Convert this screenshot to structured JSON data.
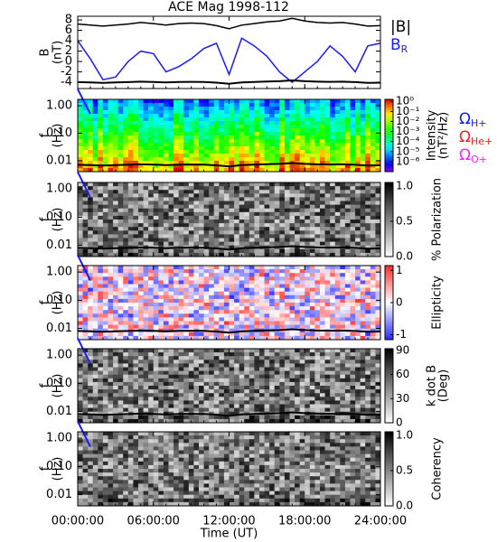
{
  "chart_data": [
    {
      "type": "line",
      "title": "ACE Mag 1998-112",
      "ylabel": [
        "B",
        "(nT)"
      ],
      "x": [
        0,
        1,
        2,
        3,
        4,
        5,
        6,
        7,
        8,
        9,
        10,
        11,
        12,
        13,
        14,
        15,
        16,
        17,
        18,
        19,
        20,
        21,
        22,
        23,
        24
      ],
      "xlim": [
        0,
        24
      ],
      "ylim": [
        -5.2,
        8.7
      ],
      "yticks": [
        -4,
        -2,
        0,
        2,
        4,
        6,
        8
      ],
      "series": [
        {
          "name": "|B|",
          "color": "#000000",
          "values": [
            7.2,
            7.0,
            6.8,
            7.0,
            7.2,
            7.5,
            7.3,
            7.0,
            7.3,
            7.4,
            7.3,
            6.9,
            6.3,
            7.0,
            7.3,
            7.6,
            7.8,
            8.3,
            7.8,
            7.5,
            7.4,
            7.5,
            7.2,
            6.8,
            6.9
          ]
        },
        {
          "name": "B",
          "name_sub": "R",
          "color": "#1a1aff",
          "values": [
            4,
            0.5,
            -3.5,
            -3,
            0,
            2,
            1.5,
            -2,
            -1,
            0.5,
            2.5,
            3.5,
            -2.5,
            4.5,
            3,
            1,
            -2,
            -4,
            -2,
            0,
            3,
            1,
            -2,
            3,
            3.5
          ]
        }
      ]
    },
    {
      "type": "spectrogram",
      "ylabel": [
        "f",
        "(Hz)"
      ],
      "log_y": true,
      "xlim": [
        0,
        24
      ],
      "ylim": [
        0.004,
        1.7
      ],
      "yticks": [
        {
          "value": 1,
          "label": "1.00"
        },
        {
          "value": 0.1,
          "label": "0.10"
        },
        {
          "value": 0.01,
          "label": "0.01"
        }
      ],
      "colorbar": {
        "label": [
          "Intensity",
          "(nT²/Hz)"
        ],
        "colormap": "rainbow",
        "clim": [
          -7,
          0.2
        ],
        "ticks": [
          {
            "value": 0,
            "label": "10⁰"
          },
          {
            "value": -1,
            "label": "10⁻¹"
          },
          {
            "value": -2,
            "label": "10⁻²"
          },
          {
            "value": -3,
            "label": "10⁻³"
          },
          {
            "value": -4,
            "label": "10⁻⁴"
          },
          {
            "value": -5,
            "label": "10⁻⁵"
          },
          {
            "value": -6,
            "label": "10⁻⁶"
          }
        ]
      },
      "x": [
        0,
        1,
        2,
        3,
        4,
        5,
        6,
        7,
        8,
        9,
        10,
        11,
        12,
        13,
        14,
        15,
        16,
        17,
        18,
        19,
        20,
        21,
        22,
        23,
        24
      ],
      "series": [
        {
          "name": "Ω",
          "name_sub": "H+",
          "color": "#1a1aff",
          "values": [
            0.095,
            0.09,
            0.085,
            0.085,
            0.09,
            0.09,
            0.092,
            0.088,
            0.085,
            0.09,
            0.095,
            0.1,
            0.1,
            0.095,
            0.1,
            0.1,
            0.1,
            0.095,
            0.09,
            0.1,
            0.105,
            0.105,
            0.1,
            0.1,
            0.105
          ]
        },
        {
          "name": "Ω",
          "name_sub": "He+",
          "color": "#ff1a1a",
          "values": [
            0.024,
            0.023,
            0.022,
            0.022,
            0.023,
            0.023,
            0.024,
            0.022,
            0.022,
            0.023,
            0.024,
            0.026,
            0.025,
            0.024,
            0.026,
            0.026,
            0.025,
            0.024,
            0.022,
            0.025,
            0.027,
            0.026,
            0.025,
            0.025,
            0.026
          ]
        },
        {
          "name": "Ω",
          "name_sub": "O+",
          "color": "#ff1aff",
          "values": [
            0.006,
            0.0058,
            0.0055,
            0.0055,
            0.0057,
            0.0058,
            0.006,
            0.0056,
            0.0055,
            0.0057,
            0.006,
            0.0065,
            0.0063,
            0.006,
            0.0065,
            0.0065,
            0.0063,
            0.006,
            0.0056,
            0.0063,
            0.0067,
            0.0066,
            0.0063,
            0.0063,
            0.0066
          ]
        }
      ]
    },
    {
      "type": "spectrogram",
      "ylabel": [
        "f",
        "(Hz)"
      ],
      "log_y": true,
      "xlim": [
        0,
        24
      ],
      "ylim": [
        0.004,
        1.7
      ],
      "yticks": [
        {
          "value": 1,
          "label": "1.00"
        },
        {
          "value": 0.1,
          "label": "0.10"
        },
        {
          "value": 0.01,
          "label": "0.01"
        }
      ],
      "colorbar": {
        "label": [
          "% Polarization"
        ],
        "colormap": "gray",
        "clim": [
          0,
          1.05
        ],
        "ticks": [
          {
            "value": 1,
            "label": "1.0"
          },
          0.5,
          {
            "value": 0,
            "label": "0.0"
          }
        ]
      }
    },
    {
      "type": "spectrogram",
      "ylabel": [
        "f",
        "(Hz)"
      ],
      "log_y": true,
      "xlim": [
        0,
        24
      ],
      "ylim": [
        0.004,
        1.7
      ],
      "yticks": [
        {
          "value": 1,
          "label": "1.00"
        },
        {
          "value": 0.1,
          "label": "0.10"
        },
        {
          "value": 0.01,
          "label": "0.01"
        }
      ],
      "colorbar": {
        "label": [
          "Ellipticity"
        ],
        "colormap": "bwr",
        "clim": [
          -1.15,
          1.15
        ],
        "ticks": [
          1,
          0,
          -1
        ]
      }
    },
    {
      "type": "spectrogram",
      "ylabel": [
        "f",
        "(Hz)"
      ],
      "log_y": true,
      "xlim": [
        0,
        24
      ],
      "ylim": [
        0.004,
        1.7
      ],
      "yticks": [
        {
          "value": 1,
          "label": "1.00"
        },
        {
          "value": 0.1,
          "label": "0.10"
        },
        {
          "value": 0.01,
          "label": "0.01"
        }
      ],
      "colorbar": {
        "label": [
          "k dot B",
          "(Deg)"
        ],
        "colormap": "gray",
        "clim": [
          0,
          92
        ],
        "ticks": [
          90,
          60,
          30,
          0
        ]
      }
    },
    {
      "type": "spectrogram",
      "ylabel": [
        "f",
        "(Hz)"
      ],
      "log_y": true,
      "xlim": [
        0,
        24
      ],
      "ylim": [
        0.004,
        1.7
      ],
      "yticks": [
        {
          "value": 1,
          "label": "1.00"
        },
        {
          "value": 0.1,
          "label": "0.10"
        },
        {
          "value": 0.01,
          "label": "0.01"
        }
      ],
      "colorbar": {
        "label": [
          "Coherency"
        ],
        "colormap": "gray",
        "clim": [
          0,
          1.05
        ],
        "ticks": [
          {
            "value": 1,
            "label": "1.0"
          },
          0.5,
          {
            "value": 0,
            "label": "0.0"
          }
        ]
      },
      "xlabel": "Time (UT)",
      "xticks": [
        {
          "value": 0,
          "label": "00:00:00"
        },
        {
          "value": 6,
          "label": "06:00:00"
        },
        {
          "value": 12,
          "label": "12:00:00"
        },
        {
          "value": 18,
          "label": "18:00:00"
        },
        {
          "value": 24,
          "label": "24:00:00"
        }
      ]
    }
  ]
}
